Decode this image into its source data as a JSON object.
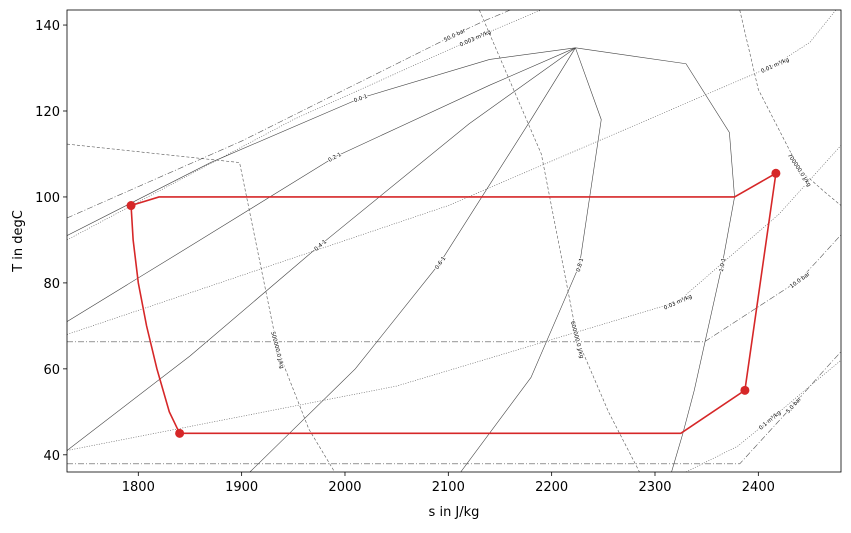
{
  "chart_data": {
    "type": "line",
    "xlabel": "s in J/kg",
    "ylabel": "T in degC",
    "xlim": [
      1731,
      2480
    ],
    "ylim": [
      36,
      143.5
    ],
    "xticks": [
      1800,
      1900,
      2000,
      2100,
      2200,
      2300,
      2400
    ],
    "yticks": [
      40,
      60,
      80,
      100,
      120,
      140
    ],
    "series": [
      {
        "line": "solid",
        "color": "#444444",
        "label": "0.0 1",
        "x": [
          1731,
          1870,
          2015,
          2140,
          2223
        ],
        "y": [
          91,
          108,
          123,
          132,
          134.7
        ]
      },
      {
        "line": "solid",
        "color": "#444444",
        "label": "0.2 1",
        "x": [
          1731,
          1860,
          1990,
          2140,
          2223
        ],
        "y": [
          71,
          90,
          109.3,
          126,
          134.7
        ]
      },
      {
        "line": "solid",
        "color": "#444444",
        "label": "0.4 1",
        "x": [
          1731,
          1850,
          1976,
          2120,
          2223
        ],
        "y": [
          41,
          63,
          88.8,
          117,
          134.7
        ]
      },
      {
        "line": "solid",
        "color": "#444444",
        "label": "0.6 1",
        "x": [
          1908,
          2010,
          2092,
          2180,
          2223
        ],
        "y": [
          36,
          60,
          84.7,
          118,
          134.7
        ]
      },
      {
        "line": "solid",
        "color": "#444444",
        "label": "0.8 1",
        "x": [
          2112,
          2180,
          2227,
          2248,
          2223
        ],
        "y": [
          36,
          58,
          84.2,
          118,
          134.7
        ]
      },
      {
        "line": "solid",
        "color": "#444444",
        "label": "1.0 1",
        "x": [
          2223,
          2330,
          2372,
          2377,
          2365,
          2350,
          2338,
          2327,
          2316
        ],
        "y": [
          134.7,
          131,
          115,
          100,
          84.2,
          68,
          55,
          45,
          36
        ]
      },
      {
        "line": "dashdot",
        "color": "#555555",
        "label": "50.0 bar",
        "x": [
          1731,
          1900,
          2106,
          2135,
          2160
        ],
        "y": [
          95.1,
          113,
          137.7,
          141,
          143.5
        ]
      },
      {
        "line": "dashdot",
        "color": "#555555",
        "label": "10.0 bar",
        "x": [
          1731,
          2348,
          2440,
          2460,
          2480
        ],
        "y": [
          66.3,
          66.3,
          80.7,
          85.9,
          91.2
        ]
      },
      {
        "line": "dashdot",
        "color": "#555555",
        "label": "5.0 bar",
        "x": [
          1731,
          2382,
          2434,
          2460,
          2480
        ],
        "y": [
          37.9,
          37.9,
          51.6,
          58.7,
          64
        ]
      },
      {
        "line": "dotted",
        "color": "#555555",
        "label": "0.003 m³/kg",
        "x": [
          1731,
          1950,
          2126,
          2160,
          2190
        ],
        "y": [
          90,
          118,
          137,
          140.5,
          143.5
        ]
      },
      {
        "line": "dotted",
        "color": "#555555",
        "label": "0.01 m³/kg",
        "x": [
          1731,
          2100,
          2416,
          2450,
          2475
        ],
        "y": [
          68,
          98,
          130.7,
          136,
          143.5
        ]
      },
      {
        "line": "dotted",
        "color": "#555555",
        "label": "0.03 m³/kg",
        "x": [
          1731,
          2050,
          2322,
          2420,
          2480
        ],
        "y": [
          41,
          56,
          75.6,
          96,
          112
        ]
      },
      {
        "line": "dotted",
        "color": "#555555",
        "label": "0.1 m³/kg",
        "x": [
          2330,
          2380,
          2411,
          2450,
          2480
        ],
        "y": [
          36,
          42,
          48.1,
          56,
          62
        ]
      },
      {
        "line": "dashed",
        "color": "#555555",
        "label": "500000.0 J/kg",
        "x": [
          1731,
          1898,
          1935,
          1965,
          1990
        ],
        "y": [
          112.3,
          108,
          64.4,
          46,
          36
        ]
      },
      {
        "line": "dashed",
        "color": "#555555",
        "label": "600000.0 J/kg",
        "x": [
          2130,
          2190,
          2225,
          2255,
          2285
        ],
        "y": [
          143.5,
          110,
          66.8,
          50,
          36
        ]
      },
      {
        "line": "dashed",
        "color": "#555555",
        "label": "700000.0 J/kg",
        "x": [
          2382,
          2400,
          2440,
          2465,
          2480
        ],
        "y": [
          143.5,
          125,
          106.3,
          101,
          98
        ]
      },
      {
        "line": "cycle",
        "color": "#d62728",
        "x": [
          1793,
          1795,
          1800,
          1808,
          1818,
          1830,
          1840,
          2325,
          2387,
          2417,
          2377,
          1820,
          1793
        ],
        "y": [
          98,
          90,
          80,
          70,
          60,
          50,
          45,
          45,
          55,
          105.5,
          100,
          100,
          98
        ]
      },
      {
        "line": "none",
        "marker": "circle",
        "color": "#d62728",
        "x": [
          1793,
          1840,
          2387,
          2417
        ],
        "y": [
          98,
          45,
          55,
          105.5
        ]
      }
    ]
  }
}
